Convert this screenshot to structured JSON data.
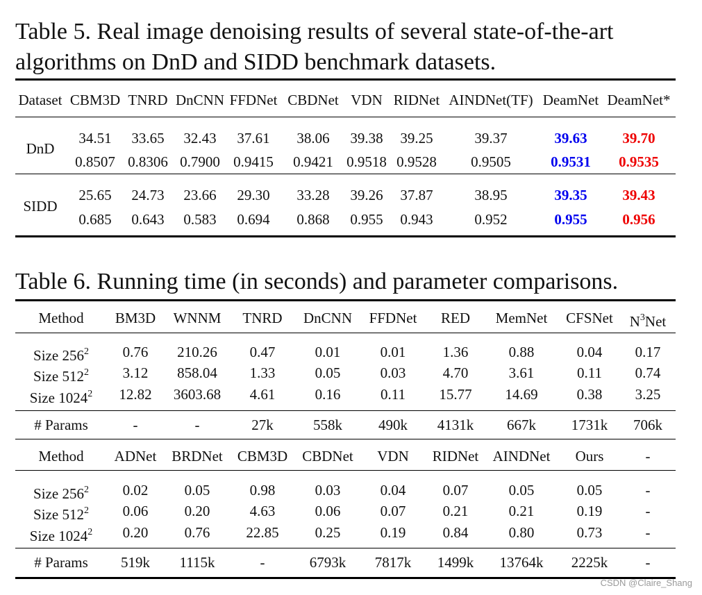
{
  "table5": {
    "caption_line1": "Table 5. Real image denoising results of several state-of-the-art",
    "caption_line2": "algorithms on DnD and SIDD benchmark datasets.",
    "headers": [
      "Dataset",
      "CBM3D",
      "TNRD",
      "DnCNN",
      "FFDNet",
      "CBDNet",
      "VDN",
      "RIDNet",
      "AINDNet(TF)",
      "DeamNet",
      "DeamNet*"
    ],
    "rows": [
      {
        "dataset": "DnD",
        "psnr": [
          "34.51",
          "33.65",
          "32.43",
          "37.61",
          "38.06",
          "39.38",
          "39.25",
          "39.37",
          "39.63",
          "39.70"
        ],
        "ssim": [
          "0.8507",
          "0.8306",
          "0.7900",
          "0.9415",
          "0.9421",
          "0.9518",
          "0.9528",
          "0.9505",
          "0.9531",
          "0.9535"
        ]
      },
      {
        "dataset": "SIDD",
        "psnr": [
          "25.65",
          "24.73",
          "23.66",
          "29.30",
          "33.28",
          "39.26",
          "37.87",
          "38.95",
          "39.35",
          "39.43"
        ],
        "ssim": [
          "0.685",
          "0.643",
          "0.583",
          "0.694",
          "0.868",
          "0.955",
          "0.943",
          "0.952",
          "0.955",
          "0.956"
        ]
      }
    ],
    "highlight_colors": {
      "second": "#0000ee",
      "best": "#ee0000"
    }
  },
  "table6": {
    "caption": "Table 6. Running time (in seconds) and parameter comparisons.",
    "row_labels": [
      "Size 256",
      "Size 512",
      "Size 1024"
    ],
    "square_mark": "2",
    "params_label": "# Params",
    "method_label": "Method",
    "block1": {
      "methods": [
        "BM3D",
        "WNNM",
        "TNRD",
        "DnCNN",
        "FFDNet",
        "RED",
        "MemNet",
        "CFSNet",
        "N"
      ],
      "n3_superscript": "3",
      "n3_suffix": "Net",
      "times": [
        [
          "0.76",
          "210.26",
          "0.47",
          "0.01",
          "0.01",
          "1.36",
          "0.88",
          "0.04",
          "0.17"
        ],
        [
          "3.12",
          "858.04",
          "1.33",
          "0.05",
          "0.03",
          "4.70",
          "3.61",
          "0.11",
          "0.74"
        ],
        [
          "12.82",
          "3603.68",
          "4.61",
          "0.16",
          "0.11",
          "15.77",
          "14.69",
          "0.38",
          "3.25"
        ]
      ],
      "params": [
        "-",
        "-",
        "27k",
        "558k",
        "490k",
        "4131k",
        "667k",
        "1731k",
        "706k"
      ]
    },
    "block2": {
      "methods": [
        "ADNet",
        "BRDNet",
        "CBM3D",
        "CBDNet",
        "VDN",
        "RIDNet",
        "AINDNet",
        "Ours",
        "-"
      ],
      "times": [
        [
          "0.02",
          "0.05",
          "0.98",
          "0.03",
          "0.04",
          "0.07",
          "0.05",
          "0.05",
          "-"
        ],
        [
          "0.06",
          "0.20",
          "4.63",
          "0.06",
          "0.07",
          "0.21",
          "0.21",
          "0.19",
          "-"
        ],
        [
          "0.20",
          "0.76",
          "22.85",
          "0.25",
          "0.19",
          "0.84",
          "0.80",
          "0.73",
          "-"
        ]
      ],
      "params": [
        "519k",
        "1115k",
        "-",
        "6793k",
        "7817k",
        "1499k",
        "13764k",
        "2225k",
        "-"
      ]
    }
  },
  "watermark": "CSDN @Claire_Shang"
}
